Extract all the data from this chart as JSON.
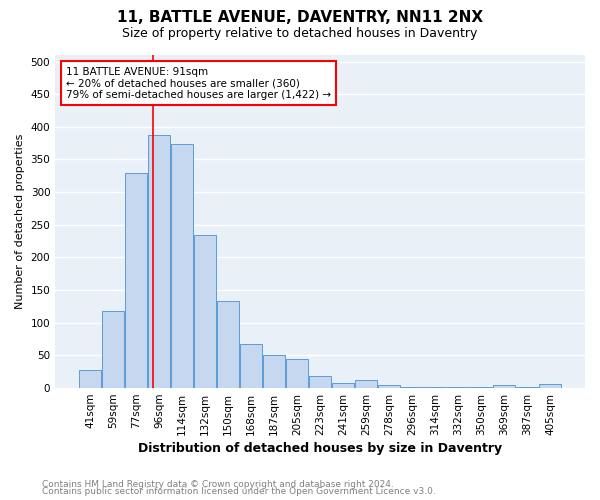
{
  "title": "11, BATTLE AVENUE, DAVENTRY, NN11 2NX",
  "subtitle": "Size of property relative to detached houses in Daventry",
  "xlabel": "Distribution of detached houses by size in Daventry",
  "ylabel": "Number of detached properties",
  "footnote1": "Contains HM Land Registry data © Crown copyright and database right 2024.",
  "footnote2": "Contains public sector information licensed under the Open Government Licence v3.0.",
  "categories": [
    "41sqm",
    "59sqm",
    "77sqm",
    "96sqm",
    "114sqm",
    "132sqm",
    "150sqm",
    "168sqm",
    "187sqm",
    "205sqm",
    "223sqm",
    "241sqm",
    "259sqm",
    "278sqm",
    "296sqm",
    "314sqm",
    "332sqm",
    "350sqm",
    "369sqm",
    "387sqm",
    "405sqm"
  ],
  "values": [
    28,
    118,
    330,
    387,
    373,
    235,
    133,
    68,
    50,
    45,
    18,
    7,
    12,
    5,
    2,
    2,
    2,
    2,
    5,
    2,
    6
  ],
  "bar_color": "#c5d8f0",
  "bar_edge_color": "#5b9bd5",
  "annotation_text1": "11 BATTLE AVENUE: 91sqm",
  "annotation_text2": "← 20% of detached houses are smaller (360)",
  "annotation_text3": "79% of semi-detached houses are larger (1,422) →",
  "ylim": [
    0,
    510
  ],
  "yticks": [
    0,
    50,
    100,
    150,
    200,
    250,
    300,
    350,
    400,
    450,
    500
  ],
  "background_color": "#eaf0f8",
  "grid_color": "white",
  "title_fontsize": 11,
  "subtitle_fontsize": 9,
  "ylabel_fontsize": 8,
  "xlabel_fontsize": 9,
  "tick_fontsize": 7.5,
  "footnote_fontsize": 6.5
}
